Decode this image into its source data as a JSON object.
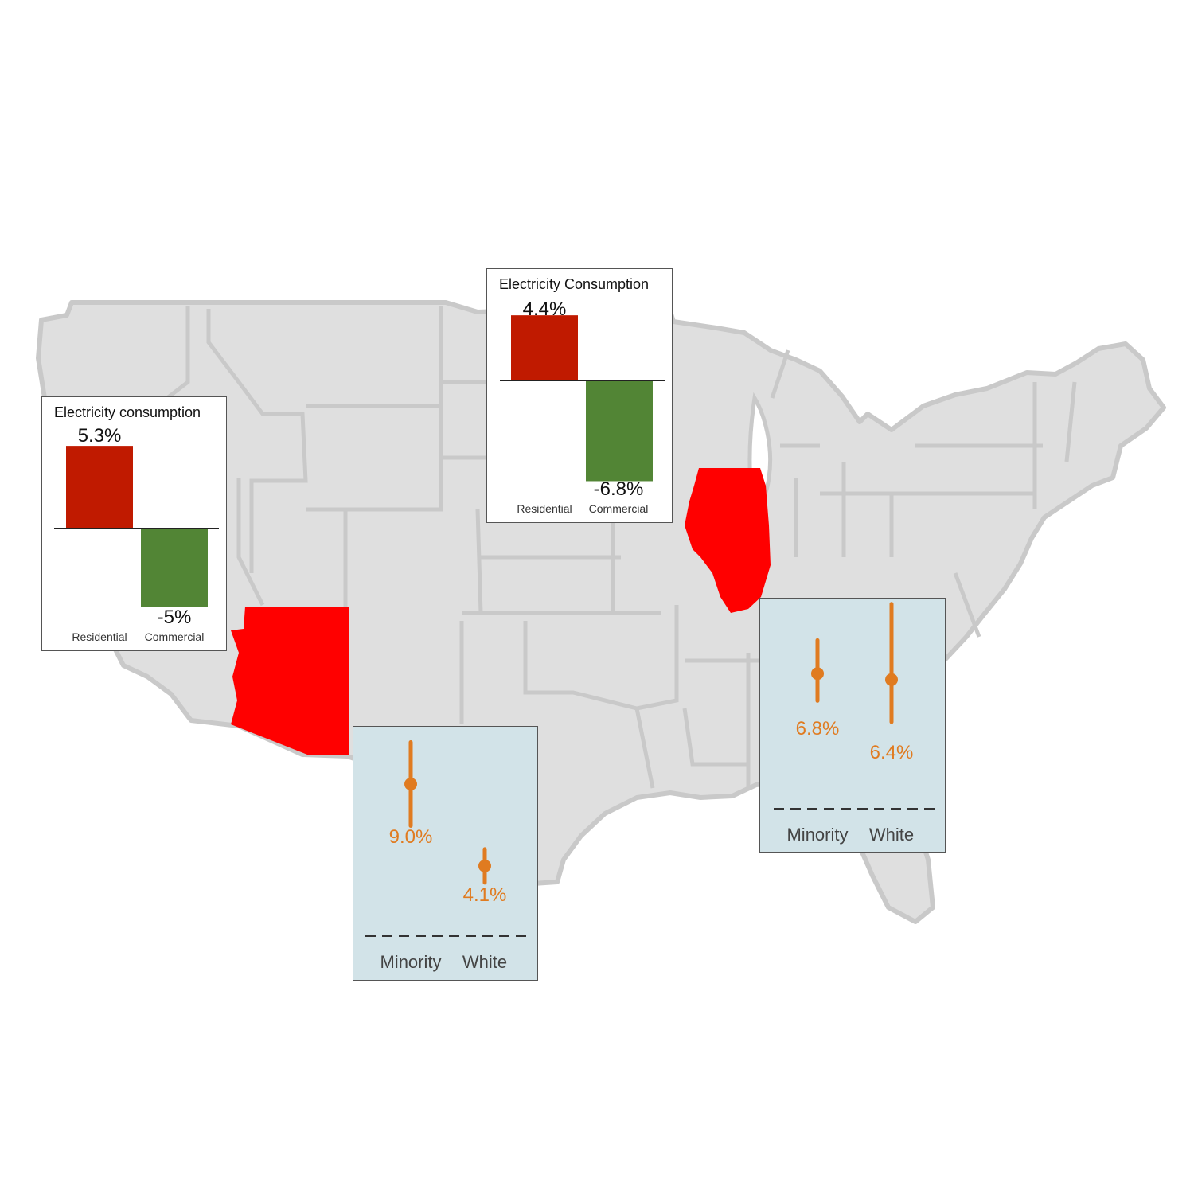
{
  "colors": {
    "map_fill": "#dfdfdf",
    "map_border": "#c9c9c9",
    "highlight_state": "#ff0000",
    "residential": "#c01a00",
    "commercial": "#528535",
    "estimate": "#e07b20",
    "range_panel_bg": "#d2e3e8",
    "bar_panel_bg": "#ffffff"
  },
  "map": {
    "highlighted_states": [
      "Arizona",
      "Illinois"
    ]
  },
  "chart_data": [
    {
      "type": "bar",
      "state": "Arizona",
      "title": "Electricity consumption",
      "categories": [
        "Residential",
        "Commercial"
      ],
      "values": [
        5.3,
        -5
      ],
      "value_labels": [
        "5.3%",
        "-5%"
      ],
      "colors": [
        "#c01a00",
        "#528535"
      ]
    },
    {
      "type": "bar",
      "state": "Illinois",
      "title": "Electricity Consumption",
      "categories": [
        "Residential",
        "Commercial"
      ],
      "values": [
        4.4,
        -6.8
      ],
      "value_labels": [
        "4.4%",
        "-6.8%"
      ],
      "colors": [
        "#c01a00",
        "#528535"
      ]
    },
    {
      "type": "scatter",
      "state": "Arizona",
      "categories": [
        "Minority",
        "White"
      ],
      "values": [
        9.0,
        4.1
      ],
      "value_labels": [
        "9.0%",
        "4.1%"
      ],
      "intervals": [
        [
          6.5,
          11.5
        ],
        [
          3.1,
          5.1
        ]
      ]
    },
    {
      "type": "scatter",
      "state": "Illinois",
      "categories": [
        "Minority",
        "White"
      ],
      "values": [
        6.8,
        6.4
      ],
      "value_labels": [
        "6.8%",
        "6.4%"
      ],
      "intervals": [
        [
          5.0,
          9.0
        ],
        [
          3.6,
          11.4
        ]
      ]
    }
  ]
}
